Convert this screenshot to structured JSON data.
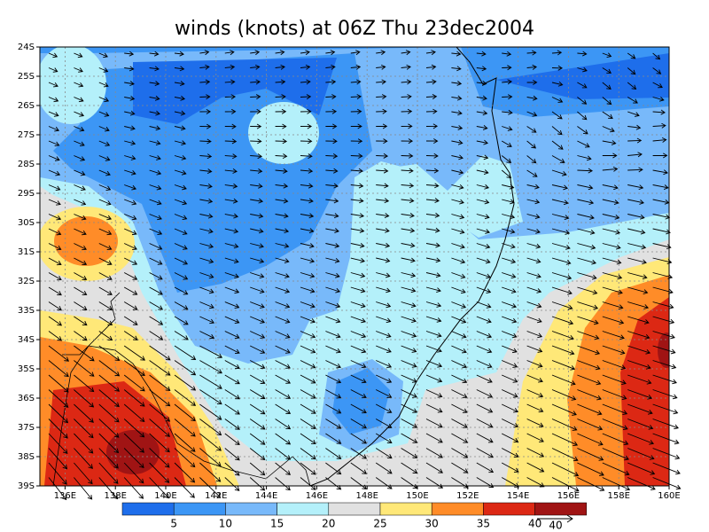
{
  "title": "winds (knots) at 06Z Thu 23dec2004",
  "lat_labels": [
    "24S",
    "25S",
    "26S",
    "27S",
    "28S",
    "29S",
    "30S",
    "31S",
    "32S",
    "33S",
    "34S",
    "35S",
    "36S",
    "37S",
    "38S",
    "39S"
  ],
  "lon_labels": [
    "136E",
    "138E",
    "140E",
    "142E",
    "144E",
    "146E",
    "148E",
    "150E",
    "152E",
    "154E",
    "156E",
    "158E",
    "160E"
  ],
  "colorbar": {
    "colors": [
      "#1e6eeb",
      "#3c96f5",
      "#78b9fa",
      "#b4f0fa",
      "#e1e1e1",
      "#ffe878",
      "#ff8c28",
      "#dc2814",
      "#a01414"
    ],
    "labels": [
      5,
      10,
      15,
      20,
      25,
      30,
      35,
      40
    ]
  },
  "reference_vector": {
    "label": "40"
  }
}
